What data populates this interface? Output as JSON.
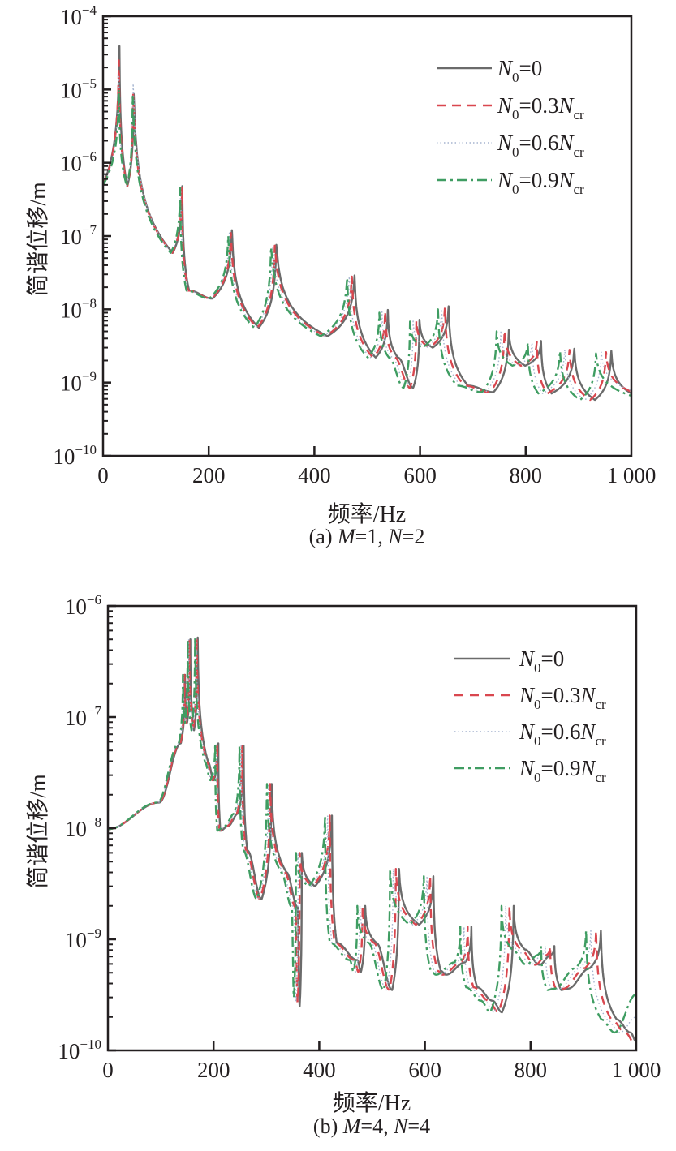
{
  "chart_data": [
    {
      "type": "line",
      "title": "",
      "xlabel": "频率/Hz",
      "ylabel": "简谐位移/m",
      "caption": {
        "prefix": "(a) ",
        "var1": "M",
        "eq1": "=1, ",
        "var2": "N",
        "eq2": "=2"
      },
      "xlim": [
        0,
        1000
      ],
      "ylim": [
        1e-10,
        0.0001
      ],
      "yscale": "log",
      "xticks": [
        0,
        200,
        400,
        600,
        800,
        1000
      ],
      "xticklabels": [
        "0",
        "200",
        "400",
        "600",
        "800",
        "1 000"
      ],
      "yticks_exp": [
        -10,
        -9,
        -8,
        -7,
        -6,
        -5,
        -4
      ],
      "ytick_base": "10",
      "yticklabels_exp": [
        "−10",
        "−9",
        "−8",
        "−7",
        "−6",
        "−5",
        "−4"
      ],
      "grid": false,
      "legend_position": "top-right",
      "series": [
        {
          "label": {
            "v": "N",
            "s": "0",
            "eq": "=0",
            "v2": "",
            "s2": ""
          },
          "color": "#6b6b6b",
          "style": "solid",
          "x": [
            0,
            31,
            46,
            58,
            132,
            150,
            163,
            207,
            244,
            295,
            328,
            425,
            476,
            516,
            539,
            558,
            587,
            599,
            624,
            654,
            691,
            739,
            768,
            799,
            829,
            849,
            892,
            931,
            962,
            1000
          ],
          "y": [
            5e-07,
            3.9e-05,
            4.8e-07,
            8.7e-06,
            5.9e-08,
            4.8e-07,
            1.8e-08,
            1.4e-08,
            1.2e-07,
            5.6e-09,
            7.6e-08,
            4.3e-09,
            2.9e-08,
            2.2e-09,
            9.8e-09,
            2.2e-09,
            8.5e-10,
            7.2e-09,
            3e-09,
            1.1e-08,
            9.1e-10,
            7.4e-10,
            5.2e-09,
            1.7e-09,
            3.7e-09,
            7.1e-10,
            2.9e-09,
            5.8e-10,
            2.7e-09,
            7.1e-10
          ]
        },
        {
          "label": {
            "v": "N",
            "s": "0",
            "eq": "=0.3",
            "v2": "N",
            "s2": "cr"
          },
          "color": "#d9474f",
          "style": "dashed",
          "x": [
            0,
            30,
            46,
            57,
            131,
            149,
            161,
            205,
            242,
            292,
            325,
            421,
            471,
            511,
            534,
            552,
            581,
            593,
            618,
            647,
            684,
            732,
            760,
            791,
            821,
            841,
            883,
            922,
            952,
            1000
          ],
          "y": [
            5e-07,
            2.5e-05,
            4.8e-07,
            8.5e-06,
            5.9e-08,
            4.6e-07,
            1.8e-08,
            1.4e-08,
            1.1e-07,
            5.6e-09,
            7.4e-08,
            4.3e-09,
            2.8e-08,
            2.2e-09,
            9.5e-09,
            2.2e-09,
            8.5e-10,
            7e-09,
            3e-09,
            1.05e-08,
            9.1e-10,
            7.4e-10,
            5.2e-09,
            1.7e-09,
            3.6e-09,
            7.1e-10,
            2.8e-09,
            5.8e-10,
            2.6e-09,
            7.5e-10
          ]
        },
        {
          "label": {
            "v": "N",
            "s": "0",
            "eq": "=0.6",
            "v2": "N",
            "s2": "cr"
          },
          "color": "#a5b4cf",
          "style": "dotted",
          "x": [
            0,
            30,
            45,
            57,
            129,
            147,
            160,
            203,
            239,
            289,
            321,
            417,
            466,
            506,
            528,
            547,
            575,
            587,
            612,
            641,
            677,
            724,
            753,
            783,
            812,
            832,
            874,
            912,
            943,
            1000
          ],
          "y": [
            5e-07,
            1.5e-05,
            4.8e-07,
            1.2e-05,
            5.9e-08,
            4.5e-07,
            1.8e-08,
            1.4e-08,
            1.1e-07,
            5.6e-09,
            7.2e-08,
            4.3e-09,
            2.8e-08,
            2.2e-09,
            9.3e-09,
            2.2e-09,
            8.5e-10,
            6.9e-09,
            3e-09,
            1e-08,
            9.1e-10,
            7.4e-10,
            5.1e-09,
            1.7e-09,
            3.5e-09,
            7.1e-10,
            2.8e-09,
            5.8e-10,
            2.6e-09,
            7.8e-10
          ]
        },
        {
          "label": {
            "v": "N",
            "s": "0",
            "eq": "=0.9",
            "v2": "N",
            "s2": "cr"
          },
          "color": "#3f9d62",
          "style": "dashdot",
          "x": [
            0,
            30,
            45,
            56,
            128,
            146,
            158,
            201,
            237,
            286,
            318,
            412,
            462,
            501,
            523,
            541,
            569,
            581,
            605,
            634,
            670,
            717,
            745,
            775,
            804,
            824,
            865,
            903,
            933,
            1000
          ],
          "y": [
            5e-07,
            1e-05,
            4.8e-07,
            8e-06,
            5.9e-08,
            4.5e-07,
            1.8e-08,
            1.4e-08,
            1e-07,
            5.6e-09,
            7e-08,
            4.3e-09,
            2.7e-08,
            2.2e-09,
            9e-09,
            2.2e-09,
            8.5e-10,
            6.8e-09,
            3e-09,
            1e-08,
            9.1e-10,
            7.4e-10,
            5e-09,
            1.7e-09,
            3.5e-09,
            7.1e-10,
            2.7e-09,
            5.8e-10,
            2.5e-09,
            6.6e-10
          ]
        }
      ]
    },
    {
      "type": "line",
      "title": "",
      "xlabel": "频率/Hz",
      "ylabel": "简谐位移/m",
      "caption": {
        "prefix": "(b) ",
        "var1": "M",
        "eq1": "=4, ",
        "var2": "N",
        "eq2": "=4"
      },
      "xlim": [
        0,
        1000
      ],
      "ylim": [
        1e-10,
        1e-06
      ],
      "yscale": "log",
      "xticks": [
        0,
        200,
        400,
        600,
        800,
        1000
      ],
      "xticklabels": [
        "0",
        "200",
        "400",
        "600",
        "800",
        "1 000"
      ],
      "yticks_exp": [
        -10,
        -9,
        -8,
        -7,
        -6
      ],
      "ytick_base": "10",
      "yticklabels_exp": [
        "−10",
        "−9",
        "−8",
        "−7",
        "−6"
      ],
      "grid": false,
      "legend_position": "top-right",
      "series": [
        {
          "label": {
            "v": "N",
            "s": "0",
            "eq": "=0",
            "v2": "",
            "s2": ""
          },
          "color": "#6b6b6b",
          "style": "solid",
          "x": [
            0,
            97,
            138,
            146,
            150,
            156,
            163,
            170,
            190,
            200,
            209,
            213,
            228,
            246,
            257,
            264,
            291,
            310,
            338,
            359,
            363,
            367,
            392,
            424,
            433,
            472,
            479,
            487,
            508,
            538,
            551,
            589,
            616,
            630,
            640,
            676,
            688,
            699,
            728,
            746,
            768,
            789,
            817,
            838,
            845,
            858,
            871,
            912,
            933,
            963,
            989,
            1000
          ],
          "y": [
            9.8e-09,
            1.7e-08,
            5.8e-08,
            2.4e-07,
            8.9e-08,
            5e-07,
            7.6e-08,
            5.2e-07,
            3.9e-08,
            2.7e-08,
            5.8e-08,
            9.5e-09,
            1.05e-08,
            1.35e-08,
            5.5e-08,
            6.3e-09,
            2.3e-09,
            2.5e-08,
            4e-09,
            1.95e-09,
            2.5e-10,
            6e-09,
            3e-09,
            1.3e-08,
            9.3e-10,
            6.5e-10,
            5.1e-10,
            2e-09,
            9.3e-10,
            3.5e-10,
            4.3e-09,
            1.35e-09,
            3.7e-09,
            5.2e-10,
            4.8e-10,
            6.2e-10,
            1.3e-09,
            3.7e-10,
            2.8e-10,
            2.2e-10,
            2e-09,
            8.1e-10,
            5.9e-10,
            7.2e-10,
            8.7e-10,
            3.5e-10,
            3.6e-10,
            5.5e-10,
            1.2e-09,
            1.9e-10,
            1.45e-10,
            1.2e-10
          ]
        },
        {
          "label": {
            "v": "N",
            "s": "0",
            "eq": "=0.3",
            "v2": "N",
            "s2": "cr"
          },
          "color": "#d9474f",
          "style": "dashed",
          "x": [
            0,
            96,
            137,
            145,
            149,
            154,
            161,
            168,
            188,
            198,
            207,
            211,
            226,
            244,
            254,
            261,
            288,
            307,
            335,
            355,
            359,
            363,
            388,
            420,
            429,
            467,
            474,
            482,
            503,
            533,
            545,
            583,
            610,
            624,
            634,
            669,
            681,
            692,
            721,
            739,
            760,
            781,
            809,
            830,
            837,
            849,
            862,
            903,
            924,
            953,
            979,
            1000
          ],
          "y": [
            9.8e-09,
            1.7e-08,
            5.8e-08,
            2.4e-07,
            8.9e-08,
            5e-07,
            7.6e-08,
            5.2e-07,
            3.9e-08,
            2.7e-08,
            5.8e-08,
            9.5e-09,
            1.05e-08,
            1.35e-08,
            5.5e-08,
            6.3e-09,
            2.3e-09,
            2.5e-08,
            4e-09,
            1.95e-09,
            2.7e-10,
            6e-09,
            3e-09,
            1.3e-08,
            9.3e-10,
            6.5e-10,
            5.1e-10,
            2e-09,
            9.3e-10,
            3.5e-10,
            4.3e-09,
            1.35e-09,
            3.7e-09,
            5.2e-10,
            4.8e-10,
            6.2e-10,
            1.3e-09,
            3.7e-10,
            2.8e-10,
            2.2e-10,
            2e-09,
            8.1e-10,
            5.9e-10,
            7.2e-10,
            8.7e-10,
            3.5e-10,
            3.6e-10,
            5.5e-10,
            1.2e-09,
            1.9e-10,
            1.45e-10,
            1.1e-10
          ]
        },
        {
          "label": {
            "v": "N",
            "s": "0",
            "eq": "=0.6",
            "v2": "N",
            "s2": "cr"
          },
          "color": "#a5b4cf",
          "style": "dotted",
          "x": [
            0,
            95,
            135,
            143,
            147,
            153,
            160,
            167,
            186,
            196,
            205,
            209,
            223,
            241,
            252,
            259,
            285,
            304,
            331,
            352,
            356,
            360,
            384,
            416,
            424,
            463,
            469,
            477,
            498,
            527,
            540,
            577,
            604,
            617,
            627,
            662,
            674,
            685,
            713,
            731,
            753,
            773,
            801,
            821,
            828,
            841,
            854,
            894,
            914,
            944,
            969,
            1000
          ],
          "y": [
            9.8e-09,
            1.7e-08,
            5.8e-08,
            2.4e-07,
            8.9e-08,
            5e-07,
            7.6e-08,
            5.2e-07,
            3.9e-08,
            2.7e-08,
            5.8e-08,
            9.5e-09,
            1.05e-08,
            1.35e-08,
            5.5e-08,
            6.3e-09,
            2.3e-09,
            2.5e-08,
            4e-09,
            1.95e-09,
            2.8e-10,
            6e-09,
            3e-09,
            1.3e-08,
            9.3e-10,
            6.5e-10,
            5.1e-10,
            2e-09,
            9.3e-10,
            3.5e-10,
            4.3e-09,
            1.35e-09,
            3.7e-09,
            5.2e-10,
            4.8e-10,
            6.2e-10,
            1.3e-09,
            3.7e-10,
            2.8e-10,
            2.2e-10,
            2e-09,
            8.1e-10,
            5.9e-10,
            7.2e-10,
            8.7e-10,
            3.5e-10,
            3.6e-10,
            5.5e-10,
            1.2e-09,
            1.9e-10,
            1.45e-10,
            2e-10
          ]
        },
        {
          "label": {
            "v": "N",
            "s": "0",
            "eq": "=0.9",
            "v2": "N",
            "s2": "cr"
          },
          "color": "#3f9d62",
          "style": "dashdot",
          "x": [
            0,
            94,
            134,
            142,
            146,
            151,
            158,
            165,
            184,
            194,
            203,
            207,
            221,
            239,
            249,
            256,
            282,
            301,
            328,
            348,
            352,
            356,
            380,
            411,
            420,
            458,
            465,
            472,
            493,
            522,
            534,
            571,
            598,
            611,
            621,
            656,
            667,
            678,
            706,
            724,
            745,
            765,
            792,
            813,
            820,
            832,
            845,
            885,
            905,
            934,
            959,
            1000
          ],
          "y": [
            9.8e-09,
            1.7e-08,
            5.8e-08,
            2.4e-07,
            8.9e-08,
            5e-07,
            7.6e-08,
            5.2e-07,
            3.9e-08,
            2.7e-08,
            5.8e-08,
            9.5e-09,
            1.05e-08,
            1.35e-08,
            5.5e-08,
            6.3e-09,
            2.3e-09,
            2.5e-08,
            4e-09,
            1.95e-09,
            3e-10,
            6e-09,
            3e-09,
            1.3e-08,
            9.3e-10,
            6.5e-10,
            5.1e-10,
            2e-09,
            9.3e-10,
            3.5e-10,
            4.3e-09,
            1.35e-09,
            3.7e-09,
            5.2e-10,
            4.8e-10,
            6.2e-10,
            1.3e-09,
            3.7e-10,
            2.8e-10,
            2.2e-10,
            2e-09,
            8.1e-10,
            5.9e-10,
            7.2e-10,
            8.7e-10,
            3.5e-10,
            3.6e-10,
            5.5e-10,
            1.2e-09,
            1.9e-10,
            1.45e-10,
            3.2e-10
          ]
        }
      ]
    }
  ]
}
